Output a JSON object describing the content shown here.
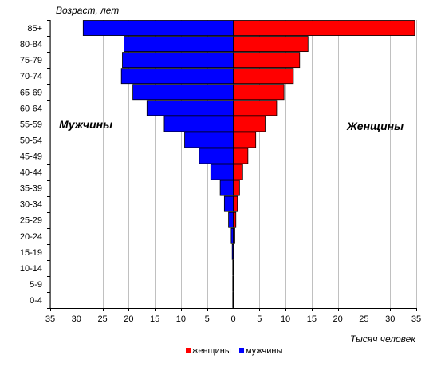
{
  "chart_data": {
    "type": "bar",
    "orientation": "horizontal-pyramid",
    "ylabel": "Возраст,  лет",
    "xlabel": "Тысяч человек",
    "left_label": "Мужчины",
    "right_label": "Женщины",
    "x_ticks": [
      "35",
      "30",
      "25",
      "20",
      "15",
      "10",
      "5",
      "0",
      "5",
      "10",
      "15",
      "20",
      "25",
      "30",
      "35"
    ],
    "xlim": [
      -35,
      35
    ],
    "grid": true,
    "legend_position": "bottom",
    "categories": [
      "85+",
      "80-84",
      "75-79",
      "70-74",
      "65-69",
      "60-64",
      "55-59",
      "50-54",
      "45-49",
      "40-44",
      "35-39",
      "30-34",
      "25-29",
      "20-24",
      "15-19",
      "10-14",
      "5-9",
      "0-4"
    ],
    "series": [
      {
        "name": "женщины",
        "side": "right",
        "color": "#ff0000",
        "values": [
          34.7,
          14.3,
          12.7,
          11.5,
          9.7,
          8.3,
          6.1,
          4.3,
          2.8,
          1.8,
          1.2,
          0.8,
          0.5,
          0.3,
          0.15,
          0.1,
          0.1,
          0.1
        ]
      },
      {
        "name": "мужчины",
        "side": "left",
        "color": "#0000ff",
        "values": [
          28.7,
          20.9,
          21.2,
          21.4,
          19.2,
          16.5,
          13.2,
          9.3,
          6.5,
          4.3,
          2.5,
          1.7,
          0.9,
          0.4,
          0.2,
          0.1,
          0.1,
          0.1
        ]
      }
    ],
    "legend": [
      "женщины",
      "мужчины"
    ]
  }
}
